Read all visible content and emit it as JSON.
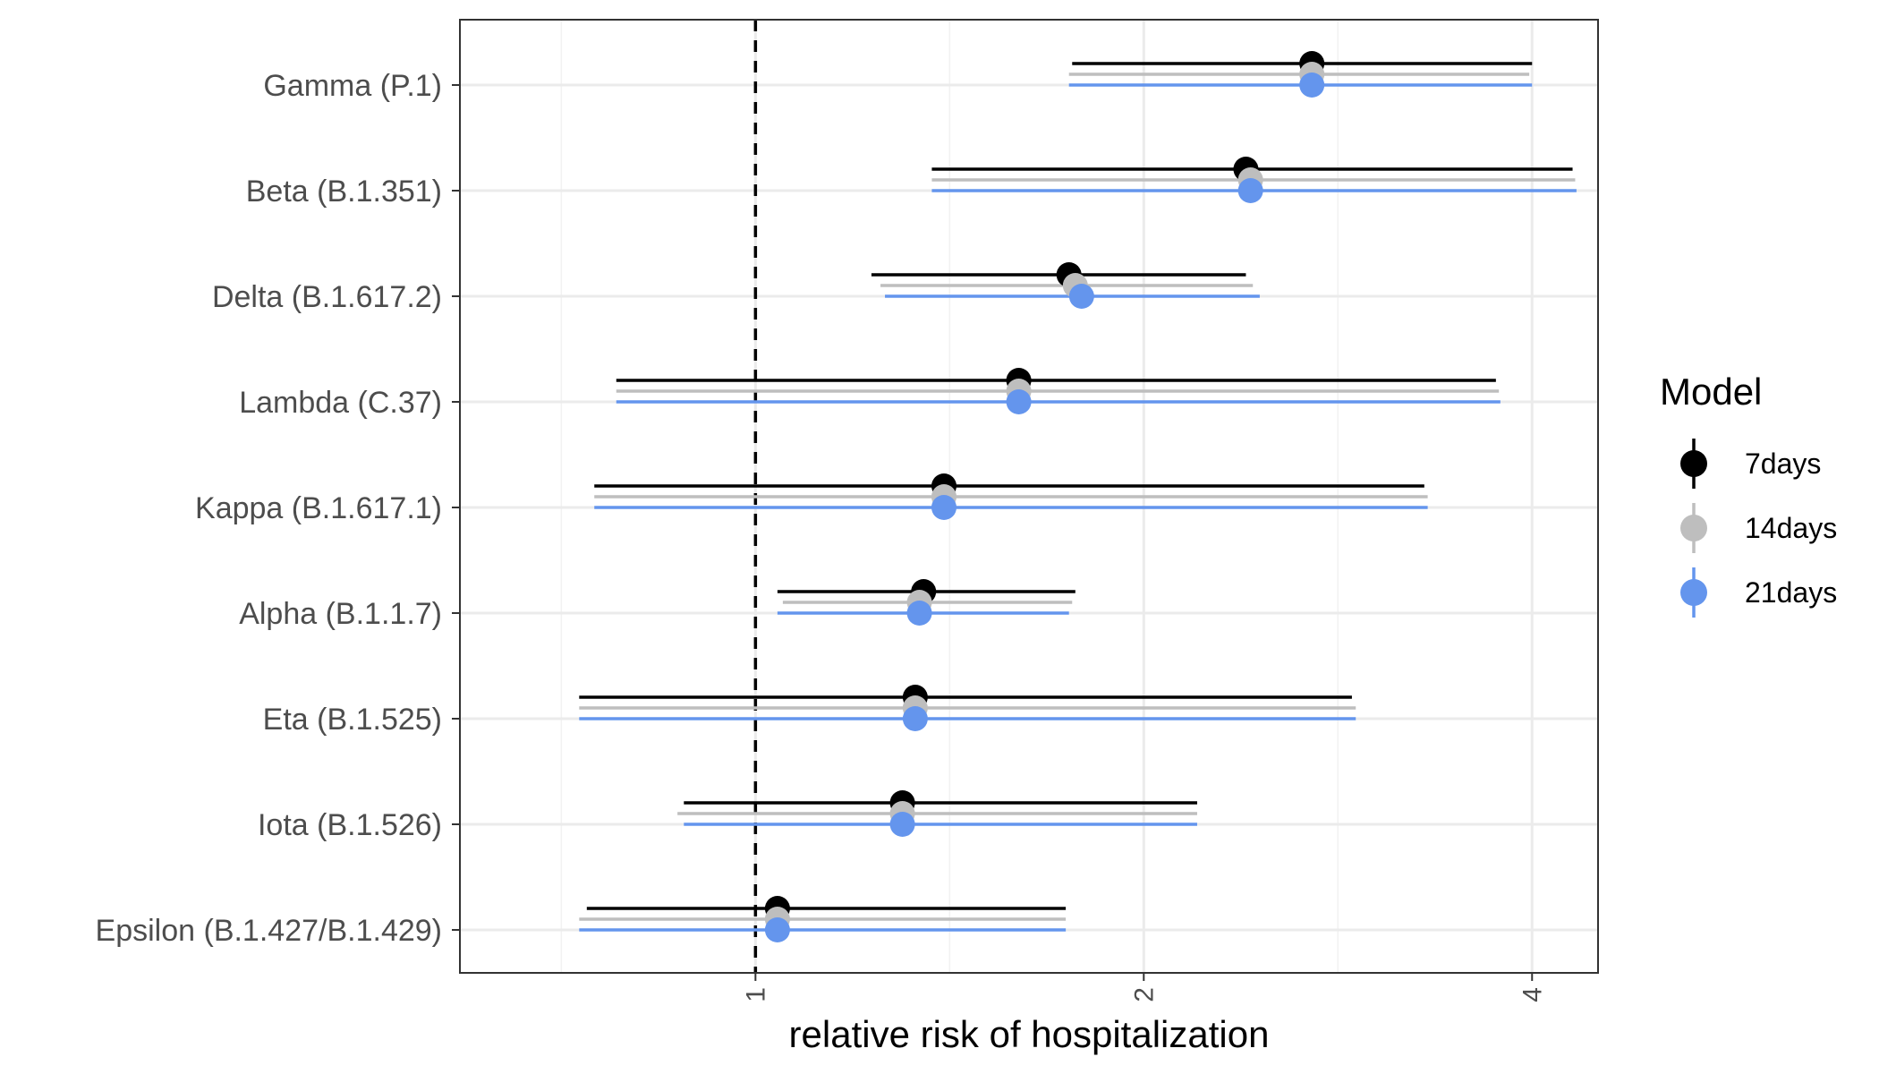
{
  "chart_data": {
    "type": "scatter",
    "title": "",
    "xlabel": "relative risk of hospitalization",
    "ylabel": "",
    "x_scale": "log2",
    "xlim": [
      0.59,
      4.5
    ],
    "x_ticks": [
      1,
      2,
      4
    ],
    "x_tick_labels": [
      "1",
      "2",
      "4"
    ],
    "reference_line_x": 1,
    "grid": true,
    "legend": {
      "title": "Model",
      "position": "right"
    },
    "categories": [
      "Gamma (P.1)",
      "Beta (B.1.351)",
      "Delta (B.1.617.2)",
      "Lambda (C.37)",
      "Kappa (B.1.617.1)",
      "Alpha (B.1.1.7)",
      "Eta (B.1.525)",
      "Iota (B.1.526)",
      "Epsilon (B.1.427/B.1.429)"
    ],
    "series": [
      {
        "name": "7days",
        "color": "#000000",
        "estimate": [
          2.7,
          2.4,
          1.75,
          1.6,
          1.4,
          1.35,
          1.33,
          1.3,
          1.04
        ],
        "lower": [
          1.76,
          1.37,
          1.23,
          0.78,
          0.75,
          1.04,
          0.73,
          0.88,
          0.74
        ],
        "upper": [
          4.0,
          4.3,
          2.4,
          3.75,
          3.3,
          1.77,
          2.9,
          2.2,
          1.74
        ]
      },
      {
        "name": "14days",
        "color": "#bebebe",
        "estimate": [
          2.7,
          2.42,
          1.77,
          1.6,
          1.4,
          1.34,
          1.33,
          1.3,
          1.04
        ],
        "lower": [
          1.75,
          1.37,
          1.25,
          0.78,
          0.75,
          1.05,
          0.73,
          0.87,
          0.73
        ],
        "upper": [
          3.98,
          4.32,
          2.43,
          3.77,
          3.32,
          1.76,
          2.92,
          2.2,
          1.74
        ]
      },
      {
        "name": "21days",
        "color": "#6495ed",
        "estimate": [
          2.7,
          2.42,
          1.79,
          1.6,
          1.4,
          1.34,
          1.33,
          1.3,
          1.04
        ],
        "lower": [
          1.75,
          1.37,
          1.26,
          0.78,
          0.75,
          1.04,
          0.73,
          0.88,
          0.73
        ],
        "upper": [
          4.0,
          4.33,
          2.46,
          3.78,
          3.32,
          1.75,
          2.92,
          2.2,
          1.74
        ]
      }
    ]
  }
}
